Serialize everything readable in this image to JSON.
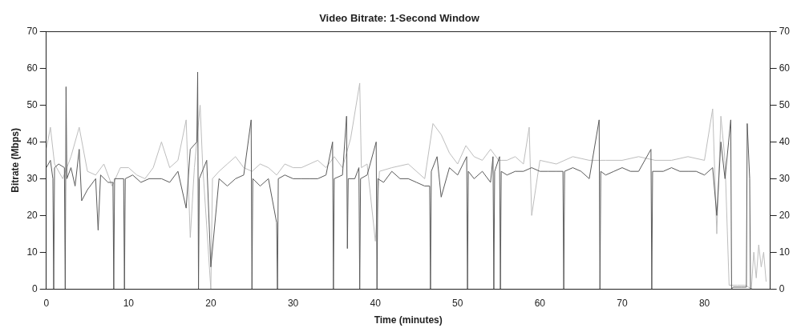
{
  "chart_data": {
    "type": "line",
    "title": "Video Bitrate: 1-Second Window",
    "xlabel": "Time (minutes)",
    "ylabel": "Bitrate (Mbps)",
    "xlim": [
      0,
      88
    ],
    "xticks": [
      0,
      10,
      20,
      30,
      40,
      50,
      60,
      70,
      80
    ],
    "ylim": [
      0,
      70
    ],
    "yticks": [
      0,
      10,
      20,
      30,
      40,
      50,
      60,
      70
    ],
    "y2lim": [
      0,
      70
    ],
    "y2ticks": [
      0,
      10,
      20,
      30,
      40,
      50,
      60,
      70
    ],
    "grid": false,
    "legend": false,
    "marker": "none",
    "line_style": "solid",
    "series": [
      {
        "color": "#bdbdbd",
        "x": [
          0,
          0.5,
          1,
          2,
          3,
          4,
          5,
          6,
          7,
          8,
          9,
          10,
          11,
          12,
          13,
          14,
          15,
          16,
          17,
          17.5,
          18,
          18.7,
          19,
          20,
          20.2,
          21,
          22,
          23,
          24,
          25,
          26,
          27,
          28,
          29,
          30,
          31,
          32,
          33,
          34,
          35,
          36,
          37,
          38.1,
          38.3,
          39,
          40,
          40.5,
          42,
          44,
          46,
          47,
          48,
          49,
          50,
          51,
          52,
          53,
          54,
          55,
          56,
          57,
          58,
          58.7,
          59,
          60,
          62,
          64,
          66,
          68,
          70,
          72,
          74,
          76,
          78,
          80,
          81,
          81.5,
          82,
          82.5,
          83,
          84,
          85,
          85.7,
          86,
          86.3,
          86.6,
          86.9,
          87.2,
          87.5
        ],
        "values": [
          38,
          44,
          34,
          30,
          36,
          44,
          32,
          31,
          34,
          28,
          33,
          33,
          31,
          30,
          33,
          40,
          33,
          35,
          46,
          14,
          33,
          50,
          34,
          0,
          30,
          32,
          34,
          36,
          33,
          32,
          34,
          33,
          31,
          34,
          33,
          33,
          34,
          35,
          33,
          36,
          33,
          41,
          56,
          33,
          34,
          13,
          32,
          33,
          34,
          30,
          45,
          42,
          37,
          34,
          39,
          36,
          35,
          38,
          35,
          35,
          36,
          34,
          44,
          20,
          35,
          34,
          36,
          35,
          35,
          35,
          36,
          35,
          35,
          36,
          35,
          49,
          15,
          47,
          35,
          1,
          1,
          1,
          0,
          10,
          3,
          12,
          6,
          10,
          2
        ]
      },
      {
        "color": "#5a5a5a",
        "x": [
          0,
          0.5,
          0.8,
          0.9,
          1,
          1.5,
          2.2,
          2.3,
          2.4,
          2.5,
          3,
          3.5,
          4,
          4.3,
          5,
          6,
          6.3,
          6.6,
          7.5,
          8.1,
          8.2,
          8.3,
          9.4,
          9.5,
          9.6,
          10.5,
          11.5,
          12.5,
          14,
          15,
          16,
          17,
          17.5,
          18.3,
          18.4,
          18.5,
          18.6,
          19.5,
          20,
          21,
          22,
          23,
          24,
          24.9,
          25,
          25.1,
          26,
          27,
          28,
          28.1,
          28.2,
          29,
          30,
          31,
          32,
          33,
          34,
          34.8,
          34.9,
          35,
          36,
          36.5,
          36.6,
          36.7,
          37.5,
          38,
          38.1,
          38.2,
          39,
          40.1,
          40.2,
          40.3,
          41,
          42,
          43,
          44,
          45,
          46,
          46.6,
          46.7,
          46.8,
          47.5,
          48,
          49,
          50,
          51.1,
          51.2,
          51.3,
          52,
          53,
          54,
          54.3,
          54.4,
          54.5,
          55.1,
          55.2,
          55.3,
          56,
          57,
          58,
          59,
          60,
          61,
          62,
          62.8,
          62.9,
          63,
          64,
          65,
          66,
          67.2,
          67.3,
          67.4,
          68,
          69,
          70,
          71,
          72,
          73.5,
          73.6,
          73.7,
          75,
          76,
          77,
          78,
          79,
          80,
          81,
          81.5,
          82,
          82.5,
          83.2,
          83.3,
          83.5,
          84.5,
          85.1,
          85.2,
          85.5,
          85.6,
          85.8
        ],
        "values": [
          33,
          35,
          30,
          0,
          33,
          34,
          33,
          0,
          55,
          30,
          33,
          28,
          38,
          24,
          27,
          30,
          16,
          31,
          29,
          29,
          0,
          30,
          30,
          0,
          30,
          31,
          29,
          30,
          30,
          29,
          32,
          22,
          38,
          40,
          59,
          0,
          30,
          35,
          6,
          30,
          28,
          30,
          31,
          46,
          0,
          30,
          28,
          30,
          18,
          0,
          30,
          31,
          30,
          30,
          30,
          30,
          31,
          40,
          0,
          30,
          31,
          47,
          11,
          30,
          30,
          33,
          0,
          30,
          31,
          40,
          0,
          30,
          29,
          32,
          30,
          30,
          29,
          28,
          28,
          0,
          32,
          36,
          25,
          33,
          31,
          36,
          0,
          32,
          30,
          32,
          29,
          36,
          0,
          32,
          36,
          0,
          32,
          31,
          32,
          32,
          33,
          32,
          32,
          32,
          32,
          0,
          32,
          33,
          32,
          30,
          46,
          0,
          32,
          31,
          32,
          33,
          32,
          32,
          38,
          0,
          32,
          32,
          33,
          32,
          32,
          32,
          31,
          33,
          20,
          40,
          30,
          46,
          0,
          0.5,
          0.5,
          0.5,
          45,
          30,
          0,
          0
        ]
      }
    ]
  }
}
